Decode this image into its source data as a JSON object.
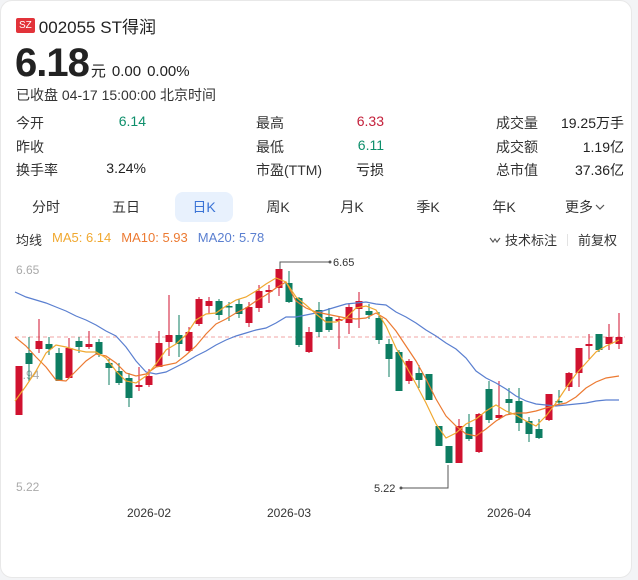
{
  "header": {
    "exchange_badge": "SZ",
    "title": "002055 ST得润",
    "price": "6.18",
    "unit": "元",
    "change": "0.00",
    "change_pct": "0.00%",
    "status": "已收盘 04-17 15:00:00 北京时间"
  },
  "stats": [
    {
      "label": "今开",
      "value": "6.14",
      "color": "green"
    },
    {
      "label": "最高",
      "value": "6.33",
      "color": "red"
    },
    {
      "label": "成交量",
      "value": "19.25万手",
      "color": "neutral"
    },
    {
      "label": "昨收",
      "value": "",
      "color": "neutral"
    },
    {
      "label": "最低",
      "value": "6.11",
      "color": "green"
    },
    {
      "label": "成交额",
      "value": "1.19亿",
      "color": "neutral"
    },
    {
      "label": "换手率",
      "value": "3.24%",
      "color": "neutral"
    },
    {
      "label": "市盈(TTM)",
      "value": "亏损",
      "color": "neutral"
    },
    {
      "label": "总市值",
      "value": "37.36亿",
      "color": "neutral"
    }
  ],
  "tabs": [
    {
      "label": "分时",
      "active": false
    },
    {
      "label": "五日",
      "active": false
    },
    {
      "label": "日K",
      "active": true
    },
    {
      "label": "周K",
      "active": false
    },
    {
      "label": "月K",
      "active": false
    },
    {
      "label": "季K",
      "active": false
    },
    {
      "label": "年K",
      "active": false
    },
    {
      "label": "更多",
      "active": false
    }
  ],
  "ma": {
    "label": "均线",
    "ma5": "MA5: 6.14",
    "ma10": "MA10: 5.93",
    "ma20": "MA20: 5.78",
    "ma5_color": "#f0a830",
    "ma10_color": "#ec7a32",
    "ma20_color": "#5a7fd0"
  },
  "tools": {
    "annotate": "技术标注",
    "adjust": "前复权"
  },
  "colors": {
    "up": "#d0122f",
    "down": "#0d7d62",
    "accent": "#3a73d6"
  },
  "chart_data": {
    "type": "candlestick",
    "ylim": [
      5.22,
      6.65
    ],
    "y_ticks": [
      "6.65",
      "5.94",
      "5.22"
    ],
    "x_ticks": [
      "2026-02",
      "2026-03",
      "2026-04"
    ],
    "reference_line": 6.18,
    "annotations": [
      {
        "label": "6.65",
        "type": "max"
      },
      {
        "label": "5.22",
        "type": "min"
      }
    ],
    "series": [
      {
        "name": "MA5",
        "last": 6.14
      },
      {
        "name": "MA10",
        "last": 5.93
      },
      {
        "name": "MA20",
        "last": 5.78
      }
    ]
  }
}
